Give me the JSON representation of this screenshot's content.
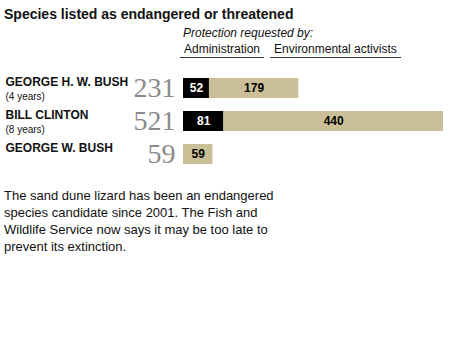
{
  "chart_data": {
    "type": "bar",
    "title": "Species listed as endangered or threatened",
    "subtitle": "Protection requested by:",
    "orientation": "horizontal",
    "stacked": true,
    "data_labels": true,
    "tick_labels": false,
    "categories": [
      "GEORGE H. W. BUSH",
      "BILL CLINTON",
      "GEORGE W. BUSH"
    ],
    "category_notes": [
      "(4 years)",
      "(8 years)",
      null
    ],
    "totals": [
      231,
      521,
      59
    ],
    "series": [
      {
        "name": "Administration",
        "color": "#000000",
        "values": [
          52,
          81,
          null
        ]
      },
      {
        "name": "Environmental activists",
        "color": "#cbbf98",
        "values": [
          179,
          440,
          59
        ]
      }
    ],
    "xlim": [
      0,
      521
    ],
    "annotations": [
      "The sand dune lizard has been an endangered species candidate since 2001. The Fish and Wildlife Service now says it may be too late to prevent its extinction."
    ]
  }
}
